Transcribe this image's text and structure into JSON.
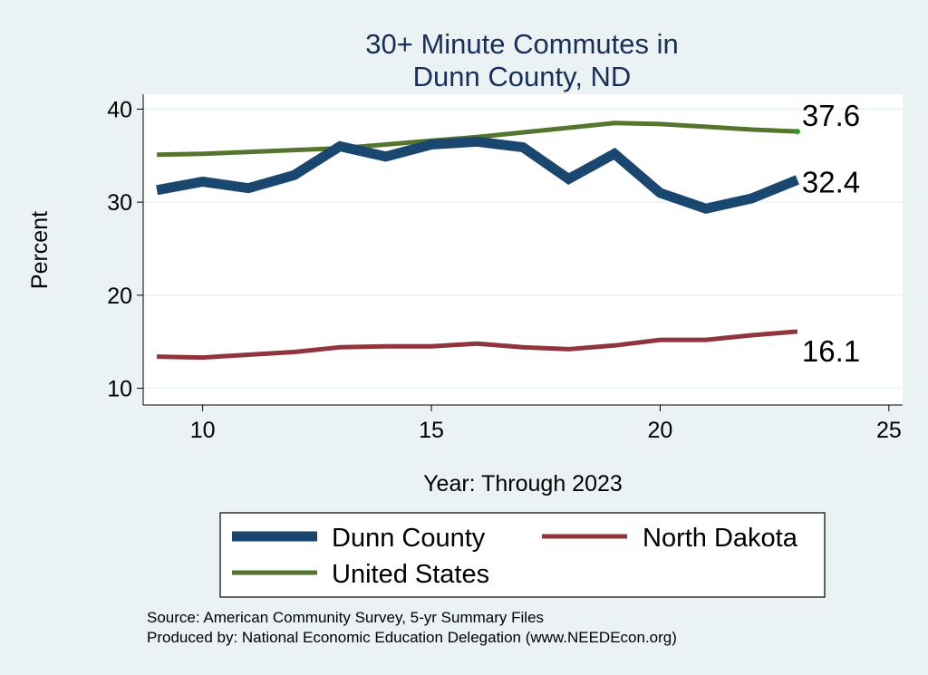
{
  "chart_data": {
    "type": "line",
    "title_lines": [
      "30+ Minute Commutes in",
      "Dunn County, ND"
    ],
    "xlabel": "Year: Through 2023",
    "ylabel": "Percent",
    "xlim": [
      8.7,
      25.3
    ],
    "ylim": [
      8.2,
      41.6
    ],
    "xticks": [
      10,
      15,
      20,
      25
    ],
    "yticks": [
      10,
      20,
      30,
      40
    ],
    "grid": true,
    "x": [
      9,
      10,
      11,
      12,
      13,
      14,
      15,
      16,
      17,
      18,
      19,
      20,
      21,
      22,
      23
    ],
    "series": [
      {
        "name": "Dunn County",
        "color": "#1a476f",
        "values": [
          31.3,
          32.2,
          31.5,
          32.9,
          36.0,
          34.9,
          36.2,
          36.5,
          35.9,
          32.5,
          35.2,
          31.0,
          29.3,
          30.4,
          32.4
        ],
        "end_label": "32.4"
      },
      {
        "name": "North Dakota",
        "color": "#90353b",
        "values": [
          13.4,
          13.3,
          13.6,
          13.9,
          14.4,
          14.5,
          14.5,
          14.8,
          14.4,
          14.2,
          14.6,
          15.2,
          15.2,
          15.7,
          16.1
        ],
        "end_label": "16.1"
      },
      {
        "name": "United States",
        "color": "#55752f",
        "values": [
          35.1,
          35.2,
          35.4,
          35.6,
          35.8,
          36.2,
          36.6,
          37.0,
          37.5,
          38.0,
          38.5,
          38.4,
          38.1,
          37.8,
          37.6
        ],
        "end_label": "37.6"
      }
    ],
    "legend": {
      "position": "bottom",
      "entries": [
        "Dunn County",
        "North Dakota",
        "United States"
      ]
    },
    "source_lines": [
      "Source: American Community Survey, 5-yr Summary Files",
      "Produced by: National Economic Education Delegation (www.NEEDEcon.org)"
    ]
  }
}
